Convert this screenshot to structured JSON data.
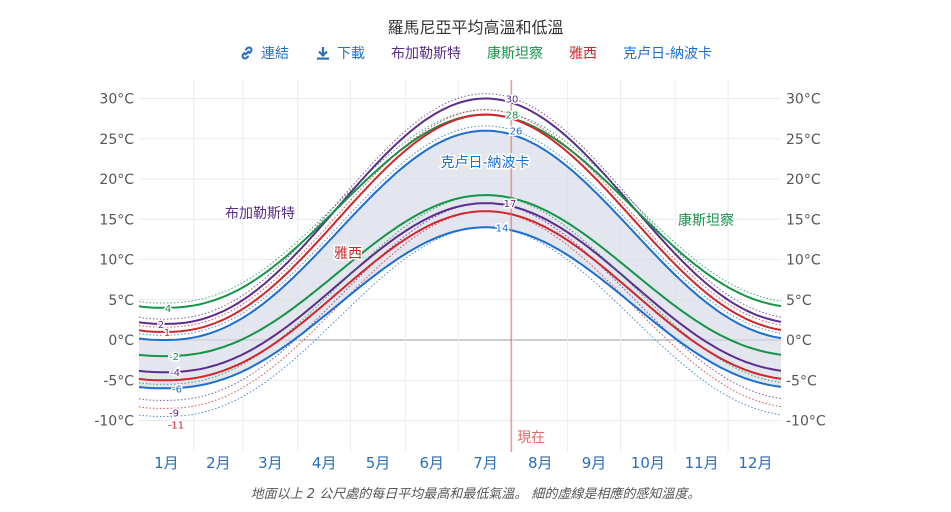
{
  "title": "羅馬尼亞平均高溫和低溫",
  "toolbar": {
    "link_label": "連結",
    "download_label": "下載",
    "link_icon": "link-icon",
    "download_icon": "download-icon",
    "series_toggles": [
      {
        "label": "布加勒斯特",
        "color": "#5b2d8e"
      },
      {
        "label": "康斯坦察",
        "color": "#149447"
      },
      {
        "label": "雅西",
        "color": "#d0262c"
      },
      {
        "label": "克卢日-納波卡",
        "color": "#1a6fd1"
      }
    ]
  },
  "caption": "地面以上 2 公尺處的每日平均最高和最低氣溫。 細的虛線是相應的感知溫度。",
  "chart_data": {
    "type": "line",
    "x_unit": "day of year",
    "xlim": [
      1,
      365
    ],
    "ylim": [
      -15,
      32
    ],
    "yticks": [
      -10,
      -5,
      0,
      5,
      10,
      15,
      20,
      25,
      30
    ],
    "ytick_labels": [
      "-10°C",
      "-5°C",
      "0°C",
      "5°C",
      "10°C",
      "15°C",
      "20°C",
      "25°C",
      "30°C"
    ],
    "month_labels": [
      "1月",
      "2月",
      "3月",
      "4月",
      "5月",
      "6月",
      "7月",
      "8月",
      "9月",
      "10月",
      "11月",
      "12月"
    ],
    "grid": true,
    "now_label": "現在",
    "now_day": 212,
    "series": [
      {
        "name": "布加勒斯特",
        "color": "#5b2d8e",
        "high_min": 2,
        "high_max": 30,
        "low_min": -4,
        "low_max": 17,
        "label_high": "30",
        "label_low": "17",
        "label_winter_high": "2",
        "label_winter_low": "-4",
        "feels_winter_low": "-9"
      },
      {
        "name": "康斯坦察",
        "color": "#149447",
        "high_min": 4,
        "high_max": 28,
        "low_min": -2,
        "low_max": 18,
        "label_high": "28",
        "label_winter_high": "4",
        "label_winter_low": "-2"
      },
      {
        "name": "雅西",
        "color": "#d0262c",
        "high_min": 1,
        "high_max": 28,
        "low_min": -5,
        "low_max": 16,
        "label_winter_high": "1",
        "feels_winter_low": "-11"
      },
      {
        "name": "克卢日-納波卡",
        "color": "#1a6fd1",
        "high_min": 0,
        "high_max": 26,
        "low_min": -6,
        "low_max": 14,
        "label_high": "26",
        "label_low": "14",
        "label_winter_low": "-6"
      }
    ],
    "annotations": [
      {
        "text": "克卢日-納波卡",
        "series": "克卢日-納波卡"
      },
      {
        "text": "布加勒斯特",
        "series": "布加勒斯特"
      },
      {
        "text": "雅西",
        "series": "雅西"
      },
      {
        "text": "康斯坦察",
        "series": "康斯坦察"
      }
    ]
  }
}
